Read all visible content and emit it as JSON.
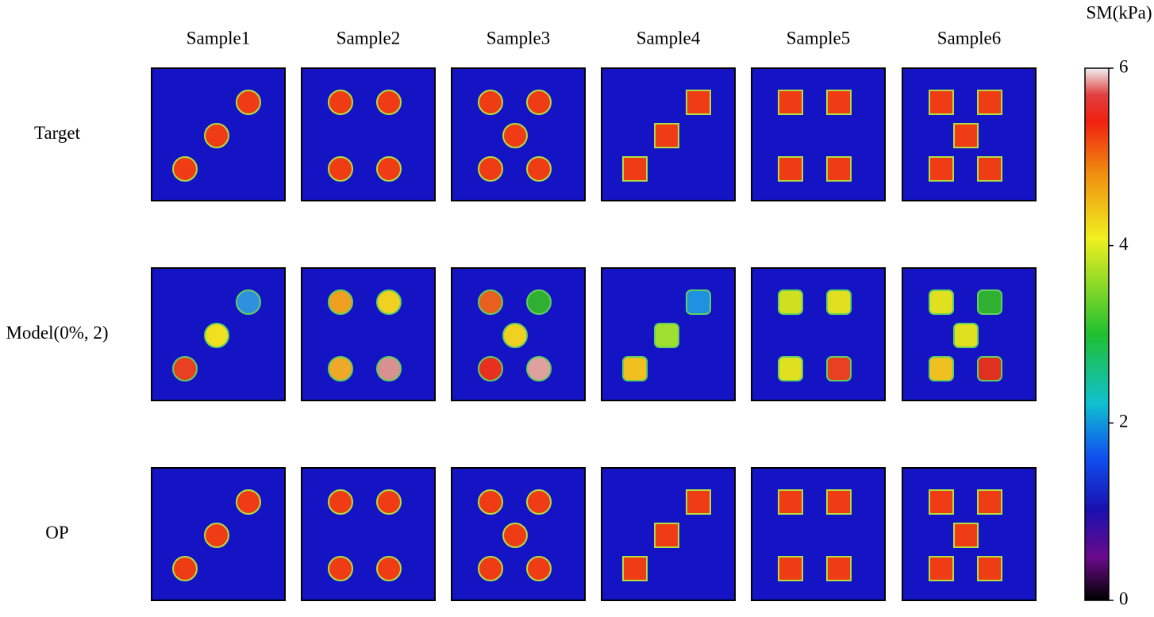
{
  "chart_data": {
    "type": "heatmap-grid",
    "columns": [
      "Sample1",
      "Sample2",
      "Sample3",
      "Sample4",
      "Sample5",
      "Sample6"
    ],
    "rows": [
      "Target",
      "Model(0%, 2)",
      "OP"
    ],
    "colorbar_label": "SM(kPa)",
    "clim": [
      0,
      6
    ],
    "cticks": [
      0,
      2,
      4,
      6
    ]
  }
}
